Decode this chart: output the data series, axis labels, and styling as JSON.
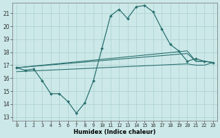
{
  "xlabel": "Humidex (Indice chaleur)",
  "bg_color": "#cce8e8",
  "grid_color": "#aad0d0",
  "line_color": "#2a7070",
  "xlim": [
    -0.5,
    23.5
  ],
  "ylim": [
    12.7,
    21.8
  ],
  "yticks": [
    13,
    14,
    15,
    16,
    17,
    18,
    19,
    20,
    21
  ],
  "xticks": [
    0,
    1,
    2,
    3,
    4,
    5,
    6,
    7,
    8,
    9,
    10,
    11,
    12,
    13,
    14,
    15,
    16,
    17,
    18,
    19,
    20,
    21,
    22,
    23
  ],
  "line_main_x": [
    0,
    1,
    2,
    3,
    4,
    5,
    6,
    7,
    8,
    9,
    10,
    11,
    12,
    13,
    14,
    15,
    16,
    17,
    18,
    19,
    20,
    21,
    22,
    23
  ],
  "line_main_y": [
    16.8,
    16.6,
    16.7,
    15.8,
    14.8,
    14.8,
    14.2,
    13.3,
    14.1,
    15.8,
    18.3,
    20.8,
    21.3,
    20.6,
    21.5,
    21.6,
    21.1,
    19.8,
    18.6,
    18.1,
    17.3,
    17.5,
    17.3,
    17.2
  ],
  "line_upper_x": [
    0,
    20,
    21,
    22,
    23
  ],
  "line_upper_y": [
    16.8,
    18.1,
    17.3,
    17.3,
    17.2
  ],
  "line_mid_x": [
    0,
    20,
    21,
    22,
    23
  ],
  "line_mid_y": [
    16.8,
    17.9,
    17.3,
    17.3,
    17.2
  ],
  "line_lower_x": [
    0,
    20,
    21,
    22,
    23
  ],
  "line_lower_y": [
    16.5,
    17.1,
    17.0,
    17.0,
    17.2
  ]
}
